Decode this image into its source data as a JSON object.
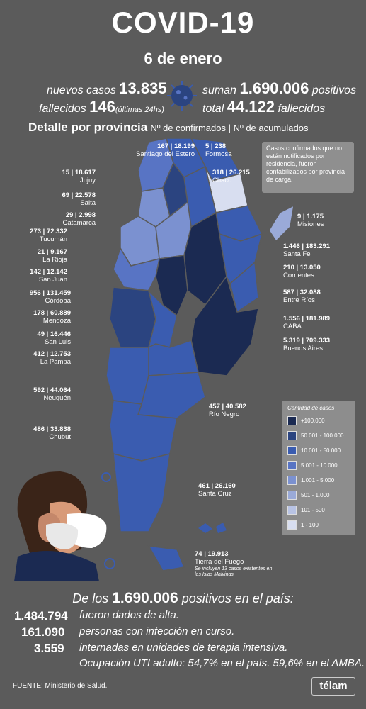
{
  "header": {
    "title": "COVID-19",
    "date": "6 de enero"
  },
  "summary": {
    "new_cases_label": "nuevos casos",
    "new_cases_value": "13.835",
    "deaths_label": "fallecidos",
    "deaths_value": "146",
    "deaths_note": "(últimas 24hs)",
    "total_positive_label": "suman",
    "total_positive_value": "1.690.006",
    "total_positive_suffix": "positivos",
    "total_deaths_label": "total",
    "total_deaths_value": "44.122",
    "total_deaths_suffix": "fallecidos"
  },
  "detail": {
    "title": "Detalle por provincia",
    "subtitle": "Nº de confirmados | Nº de acumulados"
  },
  "note": "Casos confirmados que no están notificados por residencia, fueron contabilizados por provincia de carga.",
  "provinces": [
    {
      "name": "Santiago del Estero",
      "value": "167 | 18.199"
    },
    {
      "name": "Formosa",
      "value": "5 | 238"
    },
    {
      "name": "Jujuy",
      "value": "15 | 18.617"
    },
    {
      "name": "Chaco",
      "value": "318 | 26.215"
    },
    {
      "name": "Salta",
      "value": "69 | 22.578"
    },
    {
      "name": "Catamarca",
      "value": "29 | 2.998"
    },
    {
      "name": "Misiones",
      "value": "9 | 1.175"
    },
    {
      "name": "Tucumán",
      "value": "273 | 72.332"
    },
    {
      "name": "Santa Fe",
      "value": "1.446 | 183.291"
    },
    {
      "name": "La Rioja",
      "value": "21 | 9.167"
    },
    {
      "name": "San Juan",
      "value": "142 | 12.142"
    },
    {
      "name": "Corrientes",
      "value": "210 | 13.050"
    },
    {
      "name": "Córdoba",
      "value": "956 | 131.459"
    },
    {
      "name": "Entre Ríos",
      "value": "587 | 32.088"
    },
    {
      "name": "Mendoza",
      "value": "178 | 60.889"
    },
    {
      "name": "CABA",
      "value": "1.556 | 181.989"
    },
    {
      "name": "San Luis",
      "value": "49 | 16.446"
    },
    {
      "name": "Buenos Aires",
      "value": "5.319 | 709.333"
    },
    {
      "name": "La Pampa",
      "value": "412 | 12.753"
    },
    {
      "name": "Neuquén",
      "value": "592 | 44.064"
    },
    {
      "name": "Río Negro",
      "value": "457 | 40.582"
    },
    {
      "name": "Chubut",
      "value": "486 | 33.838"
    },
    {
      "name": "Santa Cruz",
      "value": "461 | 26.160"
    },
    {
      "name": "Tierra del Fuego",
      "value": "74 | 19.913"
    }
  ],
  "tdf_note": "Se incluyen 13 casos existentes en las Islas Malvinas.",
  "legend": {
    "title": "Cantidad de casos",
    "items": [
      {
        "label": "+100.000",
        "color": "#1b2a52"
      },
      {
        "label": "50.001 - 100.000",
        "color": "#2b4480"
      },
      {
        "label": "10.001 - 50.000",
        "color": "#3a5cb0"
      },
      {
        "label": "5.001 - 10.000",
        "color": "#5874c4"
      },
      {
        "label": "1.001 - 5.000",
        "color": "#7b91d0"
      },
      {
        "label": "501 - 1.000",
        "color": "#9aaad8"
      },
      {
        "label": "101 - 500",
        "color": "#b8c3e4"
      },
      {
        "label": "1 - 100",
        "color": "#d8def0"
      }
    ]
  },
  "bottom": {
    "headline_pre": "De los",
    "headline_value": "1.690.006",
    "headline_post": "positivos en el país:",
    "rows": [
      {
        "value": "1.484.794",
        "text": "fueron dados de alta."
      },
      {
        "value": "161.090",
        "text": "personas con infección en curso."
      },
      {
        "value": "3.559",
        "text": "internadas en unidades de terapia intensiva."
      }
    ],
    "occupancy": "Ocupación UTI adulto: 54,7% en el país. 59,6% en el AMBA."
  },
  "footer": {
    "source": "FUENTE: Ministerio de Salud.",
    "brand": "télam"
  }
}
